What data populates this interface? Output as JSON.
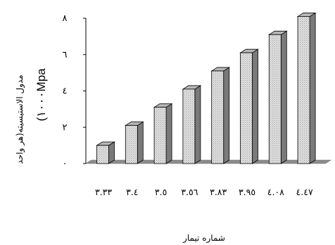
{
  "chart_data": {
    "type": "bar",
    "style": "3d-column",
    "title": "",
    "xlabel": "شماره تیمار",
    "ylabel": "مدول الاستیسیته(هر واحد",
    "ylabel_unit": "(۱۰۰۰Mpa",
    "categories": [
      "۳.۳۳",
      "۳.٤",
      "۳.٥",
      "۳.٥٦",
      "۳.۸۳",
      "۳.۹٥",
      "٤.۰۸",
      "٤.٤۷"
    ],
    "values": [
      1.0,
      2.1,
      3.1,
      4.1,
      5.1,
      6.1,
      7.1,
      8.1
    ],
    "ylim": [
      0,
      8
    ],
    "yticks": [
      0,
      2,
      4,
      6,
      8
    ],
    "ytick_labels": [
      "۰",
      "۲",
      "٤",
      "٦",
      "۸"
    ],
    "grid": false,
    "legend": "none",
    "colors": {
      "bar_front": "#d8d8d8",
      "bar_side": "#7a7a7a",
      "bar_top": "#b8b8b8",
      "floor": "#8c8c8c",
      "outline": "#000000"
    }
  }
}
